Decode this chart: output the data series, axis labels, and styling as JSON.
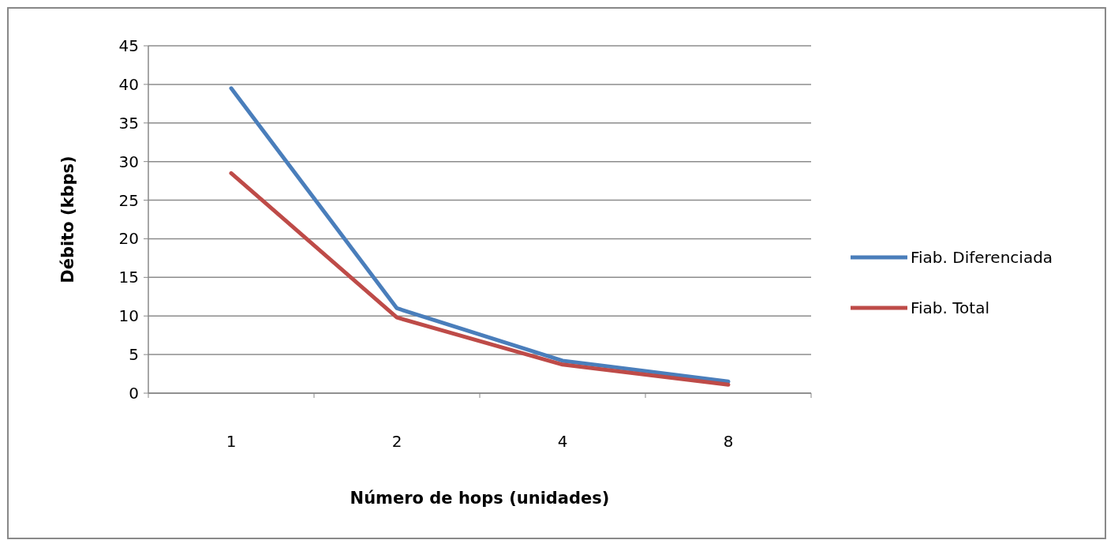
{
  "chart_data": {
    "type": "line",
    "xlabel": "Número de hops (unidades)",
    "ylabel": "Débito (kbps)",
    "categories": [
      "1",
      "2",
      "4",
      "8"
    ],
    "series": [
      {
        "name": "Fiab. Diferenciada",
        "color": "#4a7ebb",
        "values": [
          39.5,
          11,
          4.2,
          1.5
        ]
      },
      {
        "name": "Fiab. Total",
        "color": "#be4b48",
        "values": [
          28.5,
          9.8,
          3.7,
          1.1
        ]
      }
    ],
    "ylim": [
      0,
      45
    ],
    "yticks": [
      0,
      5,
      10,
      15,
      20,
      25,
      30,
      35,
      40,
      45
    ],
    "grid": "y",
    "legend": "right",
    "marker": "none",
    "line_style": "solid"
  }
}
